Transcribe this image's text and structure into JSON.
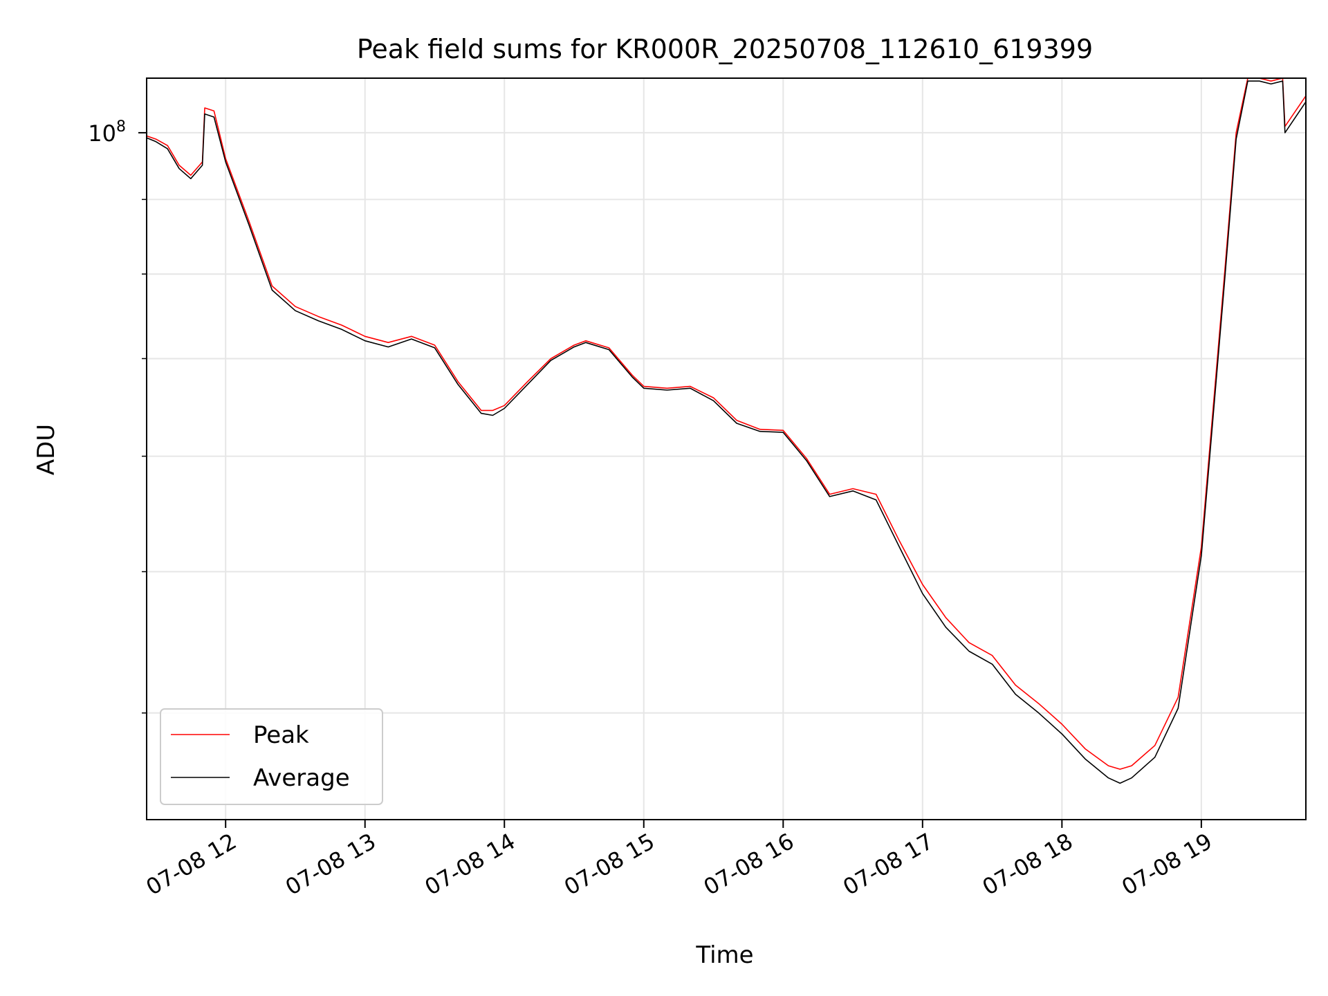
{
  "chart_data": {
    "type": "line",
    "title": "Peak field sums for KR000R_20250708_112610_619399",
    "xlabel": "Time",
    "ylabel": "ADU",
    "y_scale": "log",
    "x_axis": {
      "type": "datetime",
      "range": [
        "2025-07-08 11:26",
        "2025-07-08 19:45"
      ],
      "ticks": [
        {
          "value": "2025-07-08 12:00",
          "label": "07-08 12"
        },
        {
          "value": "2025-07-08 13:00",
          "label": "07-08 13"
        },
        {
          "value": "2025-07-08 14:00",
          "label": "07-08 14"
        },
        {
          "value": "2025-07-08 15:00",
          "label": "07-08 15"
        },
        {
          "value": "2025-07-08 16:00",
          "label": "07-08 16"
        },
        {
          "value": "2025-07-08 17:00",
          "label": "07-08 17"
        },
        {
          "value": "2025-07-08 18:00",
          "label": "07-08 18"
        },
        {
          "value": "2025-07-08 19:00",
          "label": "07-08 19"
        }
      ]
    },
    "y_axis": {
      "range": [
        33800000,
        109000000
      ],
      "major_ticks": [
        {
          "value": 100000000,
          "label_base": "10",
          "label_exp": "8"
        }
      ],
      "minor_ticks": [
        40000000,
        50000000,
        60000000,
        70000000,
        80000000,
        90000000
      ]
    },
    "grid": true,
    "legend": {
      "position": "lower-left"
    },
    "series": [
      {
        "name": "Peak",
        "color": "#ff0000",
        "x": [
          "2025-07-08 11:26",
          "2025-07-08 11:30",
          "2025-07-08 11:35",
          "2025-07-08 11:40",
          "2025-07-08 11:45",
          "2025-07-08 11:50",
          "2025-07-08 11:51",
          "2025-07-08 11:55",
          "2025-07-08 12:00",
          "2025-07-08 12:10",
          "2025-07-08 12:20",
          "2025-07-08 12:30",
          "2025-07-08 12:40",
          "2025-07-08 12:50",
          "2025-07-08 13:00",
          "2025-07-08 13:10",
          "2025-07-08 13:20",
          "2025-07-08 13:30",
          "2025-07-08 13:40",
          "2025-07-08 13:50",
          "2025-07-08 13:55",
          "2025-07-08 14:00",
          "2025-07-08 14:10",
          "2025-07-08 14:20",
          "2025-07-08 14:30",
          "2025-07-08 14:35",
          "2025-07-08 14:45",
          "2025-07-08 14:55",
          "2025-07-08 15:00",
          "2025-07-08 15:10",
          "2025-07-08 15:20",
          "2025-07-08 15:30",
          "2025-07-08 15:40",
          "2025-07-08 15:50",
          "2025-07-08 16:00",
          "2025-07-08 16:10",
          "2025-07-08 16:20",
          "2025-07-08 16:30",
          "2025-07-08 16:40",
          "2025-07-08 16:50",
          "2025-07-08 17:00",
          "2025-07-08 17:10",
          "2025-07-08 17:20",
          "2025-07-08 17:30",
          "2025-07-08 17:40",
          "2025-07-08 17:50",
          "2025-07-08 18:00",
          "2025-07-08 18:10",
          "2025-07-08 18:20",
          "2025-07-08 18:25",
          "2025-07-08 18:30",
          "2025-07-08 18:40",
          "2025-07-08 18:50",
          "2025-07-08 19:00",
          "2025-07-08 19:10",
          "2025-07-08 19:15",
          "2025-07-08 19:20",
          "2025-07-08 19:25",
          "2025-07-08 19:30",
          "2025-07-08 19:35",
          "2025-07-08 19:36",
          "2025-07-08 19:45"
        ],
        "y": [
          99500000,
          99000000,
          98000000,
          95000000,
          93500000,
          95500000,
          104000000,
          103500000,
          96000000,
          87000000,
          78500000,
          76000000,
          74800000,
          73800000,
          72500000,
          71800000,
          72500000,
          71500000,
          67500000,
          64500000,
          64500000,
          65000000,
          67500000,
          70000000,
          71500000,
          72000000,
          71200000,
          68200000,
          67000000,
          66800000,
          67000000,
          65800000,
          63500000,
          62600000,
          62500000,
          59800000,
          56500000,
          57000000,
          56500000,
          52500000,
          49000000,
          46500000,
          44700000,
          43800000,
          41800000,
          40600000,
          39300000,
          37800000,
          36800000,
          36600000,
          36800000,
          38000000,
          41000000,
          52000000,
          80000000,
          100000000,
          109000000,
          109000000,
          108500000,
          109000000,
          101000000,
          106000000
        ]
      },
      {
        "name": "Average",
        "color": "#000000",
        "x": [
          "2025-07-08 11:26",
          "2025-07-08 11:30",
          "2025-07-08 11:35",
          "2025-07-08 11:40",
          "2025-07-08 11:45",
          "2025-07-08 11:50",
          "2025-07-08 11:51",
          "2025-07-08 11:55",
          "2025-07-08 12:00",
          "2025-07-08 12:10",
          "2025-07-08 12:20",
          "2025-07-08 12:30",
          "2025-07-08 12:40",
          "2025-07-08 12:50",
          "2025-07-08 13:00",
          "2025-07-08 13:10",
          "2025-07-08 13:20",
          "2025-07-08 13:30",
          "2025-07-08 13:40",
          "2025-07-08 13:50",
          "2025-07-08 13:55",
          "2025-07-08 14:00",
          "2025-07-08 14:10",
          "2025-07-08 14:20",
          "2025-07-08 14:30",
          "2025-07-08 14:35",
          "2025-07-08 14:45",
          "2025-07-08 14:55",
          "2025-07-08 15:00",
          "2025-07-08 15:10",
          "2025-07-08 15:20",
          "2025-07-08 15:30",
          "2025-07-08 15:40",
          "2025-07-08 15:50",
          "2025-07-08 16:00",
          "2025-07-08 16:10",
          "2025-07-08 16:20",
          "2025-07-08 16:30",
          "2025-07-08 16:40",
          "2025-07-08 16:50",
          "2025-07-08 17:00",
          "2025-07-08 17:10",
          "2025-07-08 17:20",
          "2025-07-08 17:30",
          "2025-07-08 17:40",
          "2025-07-08 17:50",
          "2025-07-08 18:00",
          "2025-07-08 18:10",
          "2025-07-08 18:20",
          "2025-07-08 18:25",
          "2025-07-08 18:30",
          "2025-07-08 18:40",
          "2025-07-08 18:50",
          "2025-07-08 19:00",
          "2025-07-08 19:10",
          "2025-07-08 19:15",
          "2025-07-08 19:20",
          "2025-07-08 19:25",
          "2025-07-08 19:30",
          "2025-07-08 19:35",
          "2025-07-08 19:36",
          "2025-07-08 19:45"
        ],
        "y": [
          99200000,
          98600000,
          97500000,
          94500000,
          93000000,
          95000000,
          103000000,
          102500000,
          95500000,
          86500000,
          78000000,
          75500000,
          74300000,
          73300000,
          72000000,
          71300000,
          72200000,
          71200000,
          67200000,
          64200000,
          64000000,
          64700000,
          67200000,
          69800000,
          71300000,
          71800000,
          71000000,
          68000000,
          66800000,
          66600000,
          66800000,
          65500000,
          63200000,
          62400000,
          62300000,
          59600000,
          56300000,
          56800000,
          56000000,
          52000000,
          48300000,
          45800000,
          44100000,
          43200000,
          41200000,
          40000000,
          38700000,
          37200000,
          36100000,
          35800000,
          36100000,
          37300000,
          40300000,
          51300000,
          79000000,
          99000000,
          108500000,
          108500000,
          108000000,
          108500000,
          100000000,
          105000000
        ]
      }
    ]
  }
}
